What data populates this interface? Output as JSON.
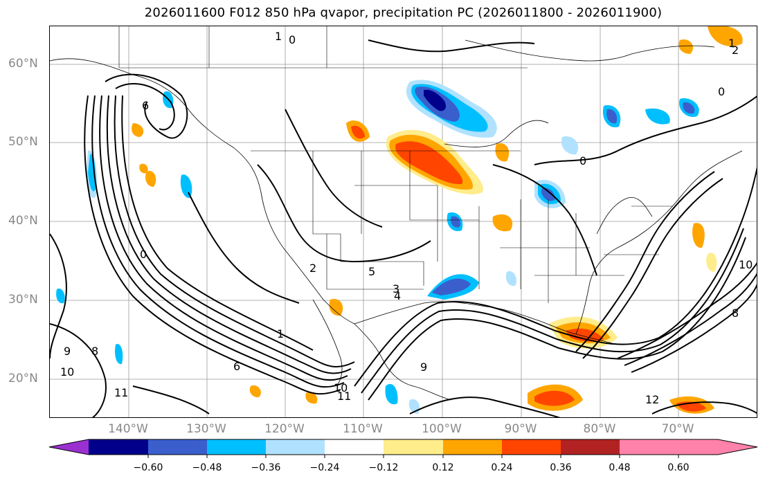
{
  "title": "2026011600 F012 850 hPa qvapor, precipitation PC (2026011800 - 2026011900)",
  "lat_labels": [
    "60°N",
    "50°N",
    "40°N",
    "30°N",
    "20°N"
  ],
  "lon_labels": [
    "140°W",
    "130°W",
    "120°W",
    "110°W",
    "100°W",
    "90°W",
    "80°W",
    "70°W"
  ],
  "colorbar": {
    "ticks": [
      "−0.60",
      "−0.48",
      "−0.36",
      "−0.24",
      "−0.12",
      "0.12",
      "0.24",
      "0.36",
      "0.48",
      "0.60"
    ],
    "colors": [
      "#9b30d0",
      "#00008b",
      "#3a5fcd",
      "#00bfff",
      "#b0e2ff",
      "#ffffff",
      "#ffec8b",
      "#ffa500",
      "#ff4500",
      "#b22222",
      "#ff82ab"
    ]
  },
  "contour_labels": [
    "0",
    "1",
    "2",
    "3",
    "4",
    "5",
    "6",
    "8",
    "9",
    "10",
    "11",
    "12"
  ]
}
